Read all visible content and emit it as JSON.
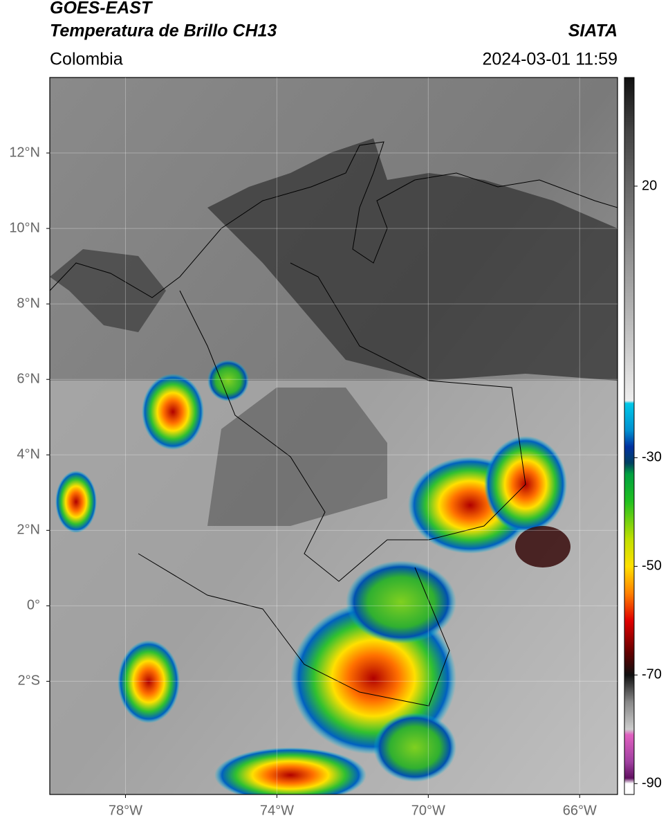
{
  "header": {
    "title": "GOES-EAST",
    "subtitle": "Temperatura de Brillo CH13",
    "source": "SIATA",
    "region": "Colombia",
    "timestamp": "2024-03-01 11:59"
  },
  "map": {
    "lon_range": [
      -80,
      -65
    ],
    "lat_range": [
      -5,
      14
    ],
    "grid": true,
    "xticks": [
      {
        "value": -78,
        "label": "78°W"
      },
      {
        "value": -74,
        "label": "74°W"
      },
      {
        "value": -70,
        "label": "70°W"
      },
      {
        "value": -66,
        "label": "66°W"
      }
    ],
    "yticks": [
      {
        "value": 12,
        "label": "12°N"
      },
      {
        "value": 10,
        "label": "10°N"
      },
      {
        "value": 8,
        "label": "8°N"
      },
      {
        "value": 6,
        "label": "6°N"
      },
      {
        "value": 4,
        "label": "4°N"
      },
      {
        "value": 2,
        "label": "2°N"
      },
      {
        "value": 0,
        "label": "0°"
      },
      {
        "value": -2,
        "label": "2°S"
      }
    ]
  },
  "colorbar": {
    "range": [
      -92,
      40
    ],
    "ticks": [
      20,
      -30,
      -50,
      -70,
      -90
    ],
    "stops": [
      {
        "value": 40,
        "color": "#111111"
      },
      {
        "value": 30,
        "color": "#444444"
      },
      {
        "value": 10,
        "color": "#888888"
      },
      {
        "value": -10,
        "color": "#cccccc"
      },
      {
        "value": -19.5,
        "color": "#eeeeee"
      },
      {
        "value": -20,
        "color": "#00c8e8"
      },
      {
        "value": -25,
        "color": "#0090d0"
      },
      {
        "value": -28,
        "color": "#0030a0"
      },
      {
        "value": -31,
        "color": "#004060"
      },
      {
        "value": -33,
        "color": "#00a040"
      },
      {
        "value": -38,
        "color": "#20c020"
      },
      {
        "value": -45,
        "color": "#c0e000"
      },
      {
        "value": -50,
        "color": "#ffe000"
      },
      {
        "value": -55,
        "color": "#ff8000"
      },
      {
        "value": -60,
        "color": "#e00000"
      },
      {
        "value": -66,
        "color": "#600000"
      },
      {
        "value": -70,
        "color": "#101010"
      },
      {
        "value": -75,
        "color": "#888888"
      },
      {
        "value": -80,
        "color": "#cccccc"
      },
      {
        "value": -81,
        "color": "#e060c0"
      },
      {
        "value": -86,
        "color": "#a040a0"
      },
      {
        "value": -89,
        "color": "#601060"
      },
      {
        "value": -90,
        "color": "#ffffff"
      },
      {
        "value": -92,
        "color": "#ffffff"
      }
    ]
  }
}
